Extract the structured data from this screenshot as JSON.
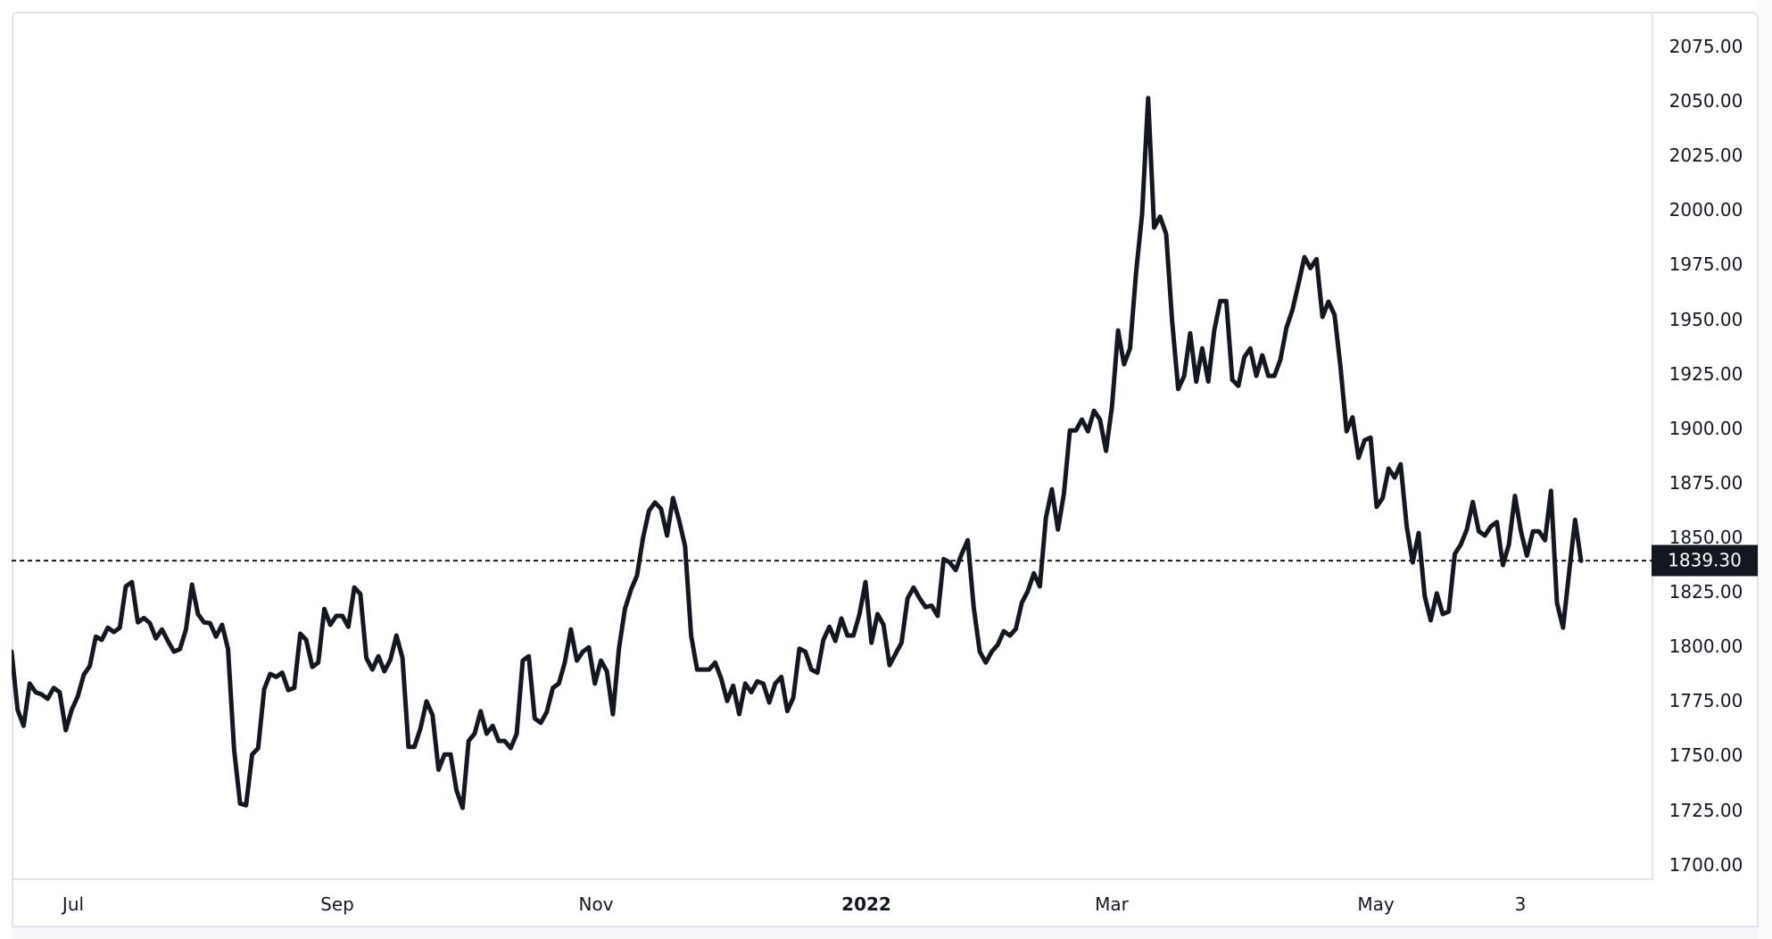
{
  "chart_data": {
    "type": "line",
    "title": "",
    "xlabel": "",
    "ylabel": "",
    "ylim": [
      1700,
      2075
    ],
    "grid": false,
    "legend": null,
    "line_color": "#131722",
    "y_ticks": [
      "2075.00",
      "2050.00",
      "2025.00",
      "2000.00",
      "1975.00",
      "1950.00",
      "1925.00",
      "1900.00",
      "1875.00",
      "1850.00",
      "1825.00",
      "1800.00",
      "1775.00",
      "1750.00",
      "1725.00",
      "1700.00"
    ],
    "x_ticks": [
      {
        "label": "Jul",
        "bold": false
      },
      {
        "label": "Sep",
        "bold": false
      },
      {
        "label": "Nov",
        "bold": false
      },
      {
        "label": "2022",
        "bold": true
      },
      {
        "label": "Mar",
        "bold": false
      },
      {
        "label": "May",
        "bold": false
      },
      {
        "label": "3",
        "bold": false
      }
    ],
    "last_price": 1839.3,
    "last_price_label": "1839.30",
    "values": [
      1797.6,
      1771.0,
      1763.6,
      1783.0,
      1779.0,
      1778.0,
      1776.0,
      1781.0,
      1779.0,
      1761.6,
      1771.0,
      1777.0,
      1787.0,
      1791.0,
      1804.5,
      1803.0,
      1808.6,
      1806.6,
      1808.6,
      1827.5,
      1829.5,
      1811.0,
      1813.0,
      1810.7,
      1803.7,
      1807.8,
      1802.5,
      1797.6,
      1798.8,
      1807.8,
      1828.3,
      1814.8,
      1811.0,
      1810.7,
      1804.5,
      1809.9,
      1798.8,
      1752.6,
      1728.0,
      1727.2,
      1750.5,
      1753.3,
      1780.4,
      1787.4,
      1786.0,
      1788.0,
      1780.0,
      1781.0,
      1805.8,
      1803.0,
      1790.6,
      1792.6,
      1817.2,
      1809.9,
      1814.0,
      1814.0,
      1809.0,
      1827.0,
      1824.0,
      1794.7,
      1789.4,
      1795.5,
      1788.6,
      1794.0,
      1805.0,
      1794.7,
      1754.0,
      1754.0,
      1762.5,
      1774.8,
      1768.5,
      1743.5,
      1750.5,
      1750.5,
      1734.0,
      1726.0,
      1756.7,
      1760.0,
      1770.3,
      1760.0,
      1763.6,
      1756.7,
      1756.7,
      1753.4,
      1760.0,
      1793.5,
      1795.5,
      1767.0,
      1765.0,
      1770.0,
      1781.0,
      1783.0,
      1792.6,
      1807.8,
      1793.5,
      1797.6,
      1799.6,
      1783.0,
      1793.5,
      1788.6,
      1768.9,
      1799.0,
      1817.2,
      1826.0,
      1832.4,
      1849.6,
      1862.2,
      1866.0,
      1863.0,
      1850.8,
      1868.0,
      1857.8,
      1846.0,
      1805.0,
      1789.4,
      1789.4,
      1789.4,
      1792.6,
      1785.3,
      1775.0,
      1782.0,
      1769.0,
      1783.0,
      1779.0,
      1784.0,
      1783.0,
      1774.3,
      1783.0,
      1786.0,
      1770.4,
      1776.5,
      1799.0,
      1797.6,
      1789.4,
      1788.0,
      1803.0,
      1809.0,
      1802.5,
      1812.8,
      1805.0,
      1805.0,
      1814.8,
      1829.5,
      1801.7,
      1814.8,
      1809.9,
      1791.4,
      1796.6,
      1801.7,
      1822.0,
      1827.0,
      1822.0,
      1818.0,
      1818.7,
      1814.0,
      1840.0,
      1838.5,
      1835.0,
      1842.4,
      1848.7,
      1818.0,
      1797.6,
      1792.6,
      1797.6,
      1800.8,
      1807.0,
      1805.0,
      1808.0,
      1820.0,
      1825.4,
      1833.5,
      1827.5,
      1858.9,
      1872.0,
      1853.6,
      1870.0,
      1899.0,
      1899.0,
      1904.0,
      1898.6,
      1908.0,
      1904.0,
      1889.6,
      1910.0,
      1944.8,
      1929.3,
      1936.6,
      1971.5,
      1998.0,
      2051.3,
      1992.0,
      1997.0,
      1989.0,
      1949.0,
      1918.0,
      1924.0,
      1943.5,
      1921.4,
      1936.6,
      1921.4,
      1944.8,
      1958.3,
      1958.3,
      1922.2,
      1919.4,
      1932.6,
      1936.6,
      1924.0,
      1933.4,
      1924.0,
      1924.0,
      1931.4,
      1946.0,
      1954.2,
      1966.0,
      1978.4,
      1973.4,
      1977.5,
      1951.0,
      1958.0,
      1952.0,
      1928.0,
      1898.6,
      1905.0,
      1886.4,
      1894.5,
      1895.7,
      1864.0,
      1868.0,
      1881.5,
      1877.4,
      1883.5,
      1855.0,
      1838.5,
      1852.0,
      1823.0,
      1812.0,
      1824.3,
      1814.8,
      1816.0,
      1842.4,
      1846.7,
      1853.6,
      1866.2,
      1852.8,
      1850.8,
      1855.0,
      1857.0,
      1837.3,
      1846.7,
      1869.0,
      1852.8,
      1841.6,
      1852.8,
      1852.8,
      1848.7,
      1871.3,
      1820.0,
      1808.6,
      1833.5,
      1858.0,
      1839.3
    ]
  }
}
